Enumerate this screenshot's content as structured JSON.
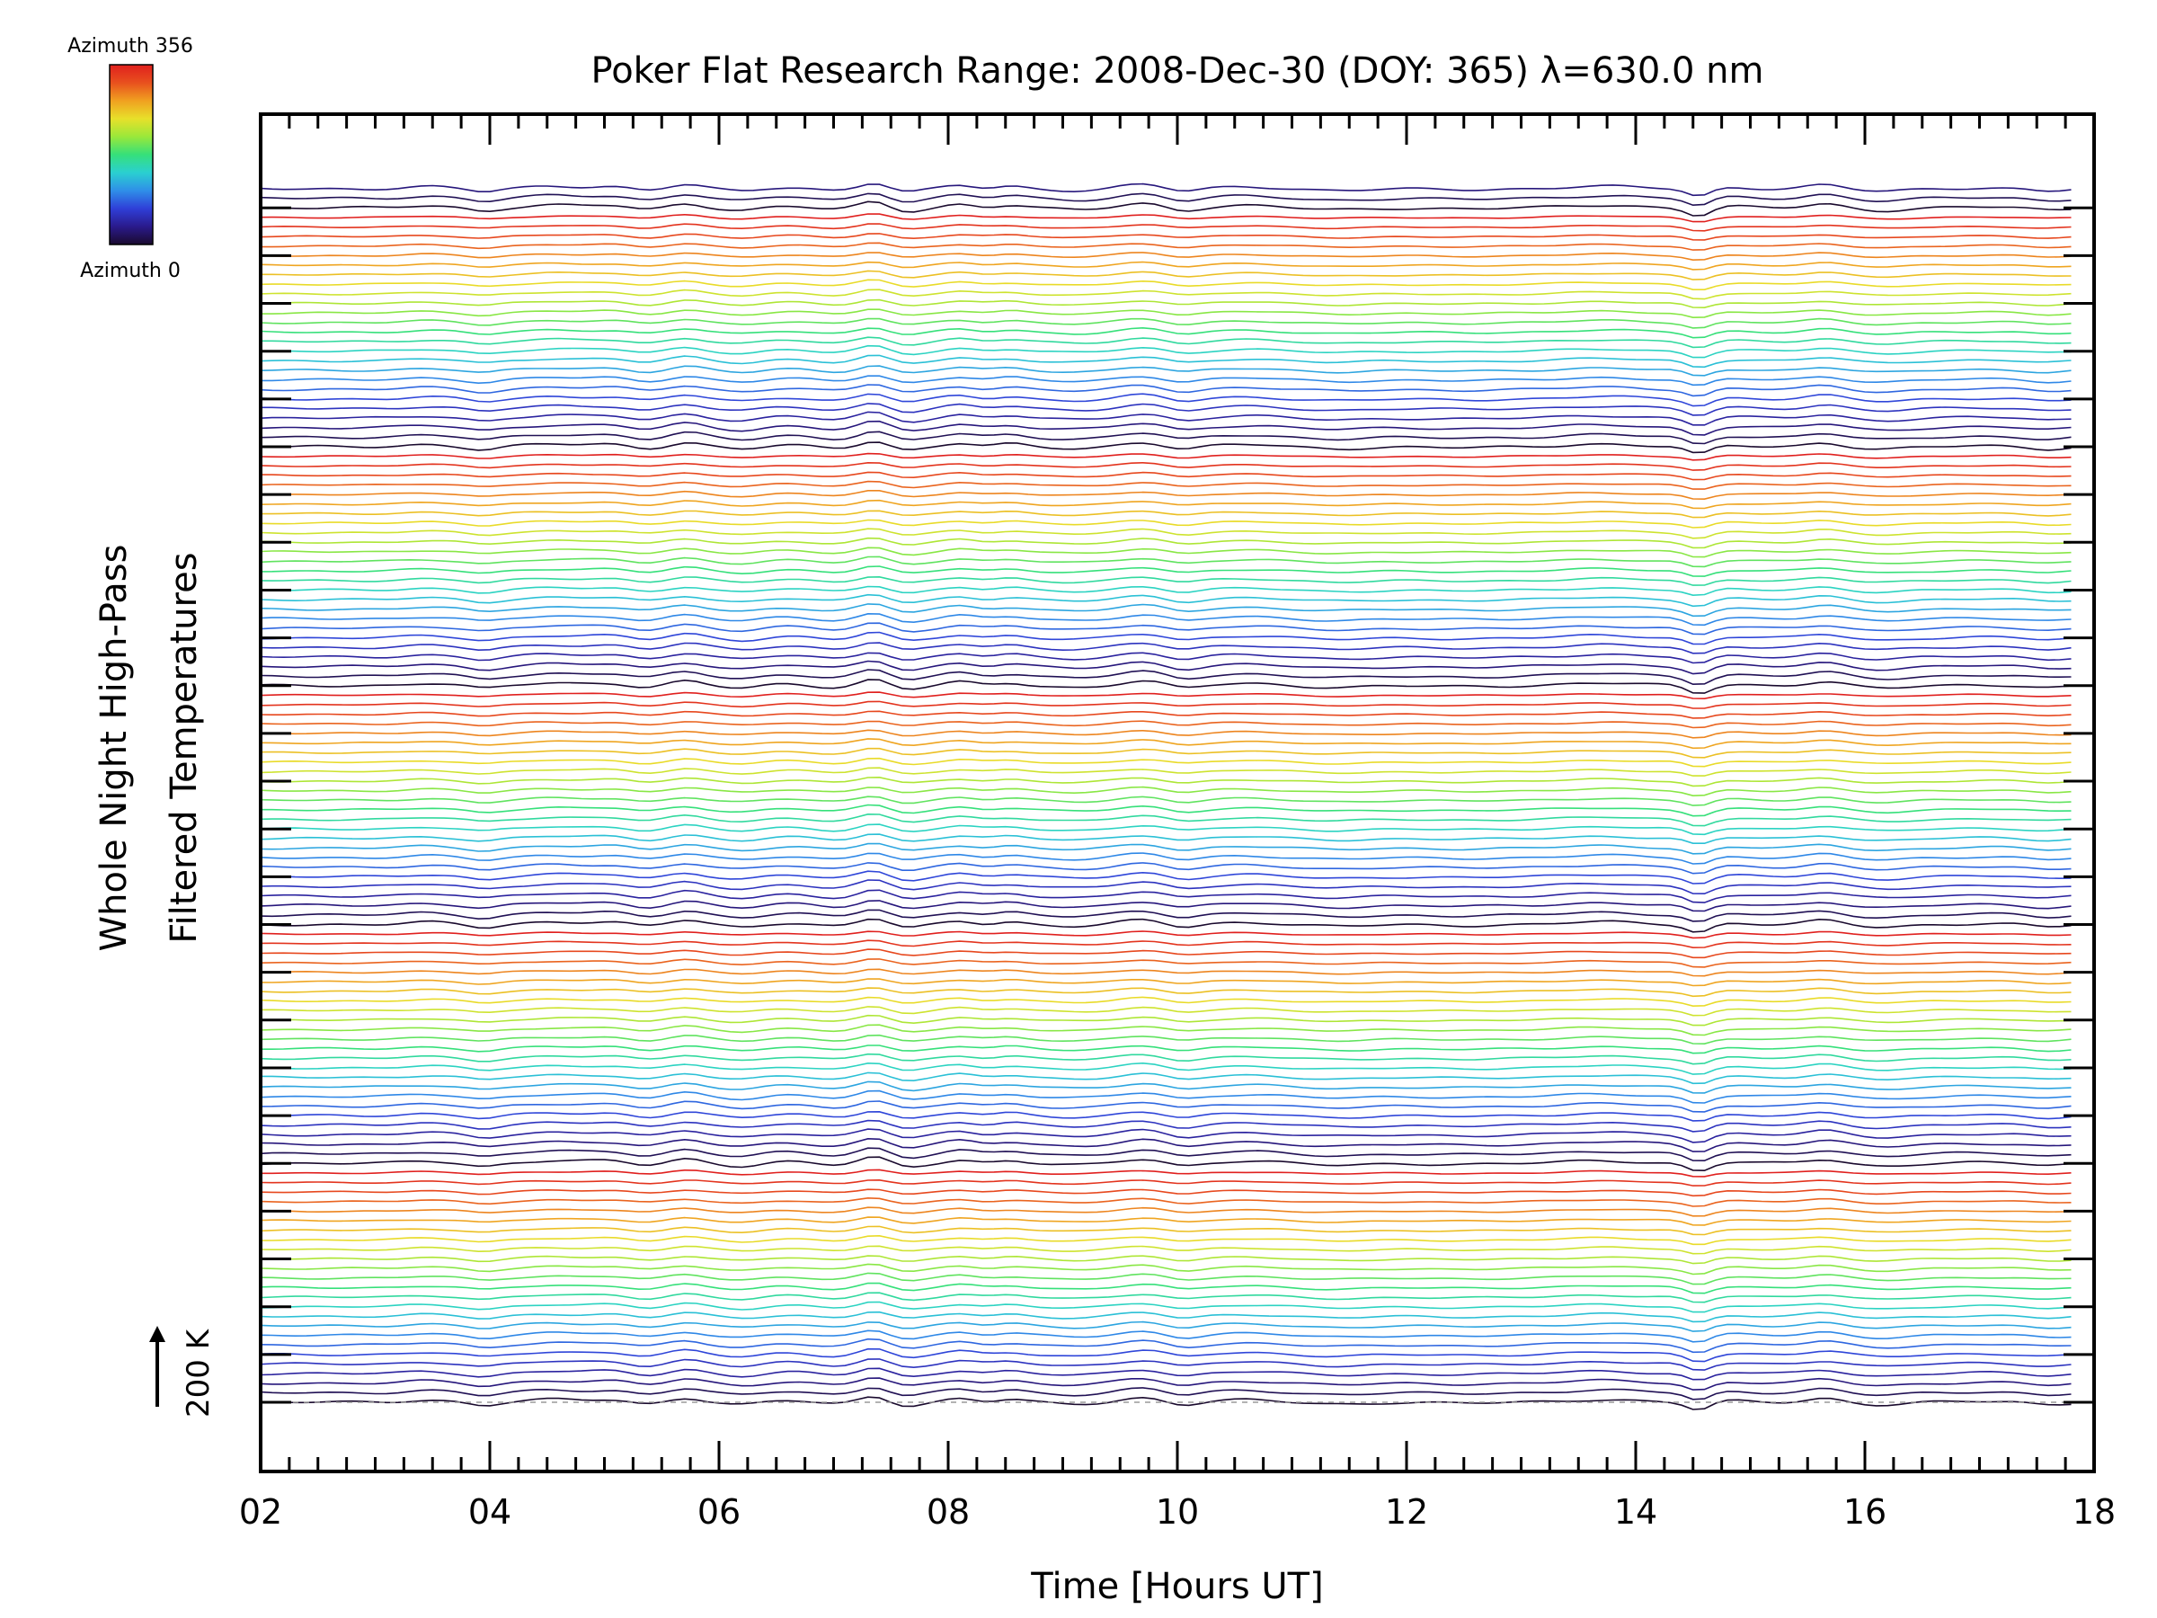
{
  "colors": {
    "background": "#ffffff",
    "axes": "#000000",
    "zero_line": "#9a9a9a",
    "colormap": [
      "#1a0a2e",
      "#2a1a8c",
      "#2f3fd8",
      "#2f8fe8",
      "#2ad0d0",
      "#36e07a",
      "#9ae83a",
      "#e8e02a",
      "#f0a020",
      "#e8501e",
      "#e0201e"
    ]
  },
  "chart_data": {
    "type": "line",
    "title": "Poker Flat Research Range: 2008-Dec-30 (DOY: 365) λ=630.0 nm",
    "xlabel": "Time [Hours UT]",
    "ylabel_line1": "Whole Night High-Pass",
    "ylabel_line2": "Filtered Temperatures",
    "xlim": [
      2,
      18
    ],
    "x_ticks": [
      2,
      4,
      6,
      8,
      10,
      12,
      14,
      16,
      18
    ],
    "x_tick_labels": [
      "02",
      "04",
      "06",
      "08",
      "10",
      "12",
      "14",
      "16",
      "18"
    ],
    "x_minor_step": 0.25,
    "data_time_range": [
      2.0,
      17.8
    ],
    "time_step_hours": 0.1,
    "n_traces": 128,
    "trace_offset_kelvin": 40,
    "y_major_tick_every_traces": 5,
    "scale_bar": {
      "label": "200 K",
      "kelvin": 200
    },
    "colorbar": {
      "top_label": "Azimuth 356",
      "bottom_label": "Azimuth 0",
      "azimuth_range": [
        0,
        356
      ]
    },
    "features": [
      {
        "t": 3.45,
        "amp": 0.5,
        "w": 0.18
      },
      {
        "t": 3.95,
        "amp": -0.7,
        "w": 0.12
      },
      {
        "t": 4.55,
        "amp": 0.6,
        "w": 0.22
      },
      {
        "t": 5.05,
        "amp": 0.55,
        "w": 0.18
      },
      {
        "t": 5.35,
        "amp": -0.5,
        "w": 0.12
      },
      {
        "t": 5.72,
        "amp": 1.0,
        "w": 0.13
      },
      {
        "t": 6.2,
        "amp": -0.6,
        "w": 0.15
      },
      {
        "t": 6.6,
        "amp": 0.4,
        "w": 0.18
      },
      {
        "t": 7.0,
        "amp": -0.4,
        "w": 0.15
      },
      {
        "t": 7.35,
        "amp": 1.4,
        "w": 0.12
      },
      {
        "t": 7.65,
        "amp": -0.8,
        "w": 0.12
      },
      {
        "t": 8.1,
        "amp": 0.8,
        "w": 0.12
      },
      {
        "t": 8.55,
        "amp": 0.6,
        "w": 0.12
      },
      {
        "t": 9.1,
        "amp": -0.4,
        "w": 0.2
      },
      {
        "t": 9.7,
        "amp": 1.0,
        "w": 0.18
      },
      {
        "t": 10.05,
        "amp": -0.7,
        "w": 0.13
      },
      {
        "t": 10.6,
        "amp": 0.5,
        "w": 0.25
      },
      {
        "t": 11.4,
        "amp": -0.4,
        "w": 0.25
      },
      {
        "t": 12.5,
        "amp": -0.2,
        "w": 0.3
      },
      {
        "t": 13.7,
        "amp": 0.6,
        "w": 0.3
      },
      {
        "t": 14.55,
        "amp": -1.8,
        "w": 0.1
      },
      {
        "t": 14.85,
        "amp": 0.3,
        "w": 0.15
      },
      {
        "t": 15.65,
        "amp": 0.9,
        "w": 0.15
      },
      {
        "t": 16.15,
        "amp": -0.6,
        "w": 0.2
      },
      {
        "t": 17.05,
        "amp": 0.2,
        "w": 0.25
      },
      {
        "t": 17.6,
        "amp": -0.5,
        "w": 0.15
      }
    ],
    "series_note": ""
  }
}
